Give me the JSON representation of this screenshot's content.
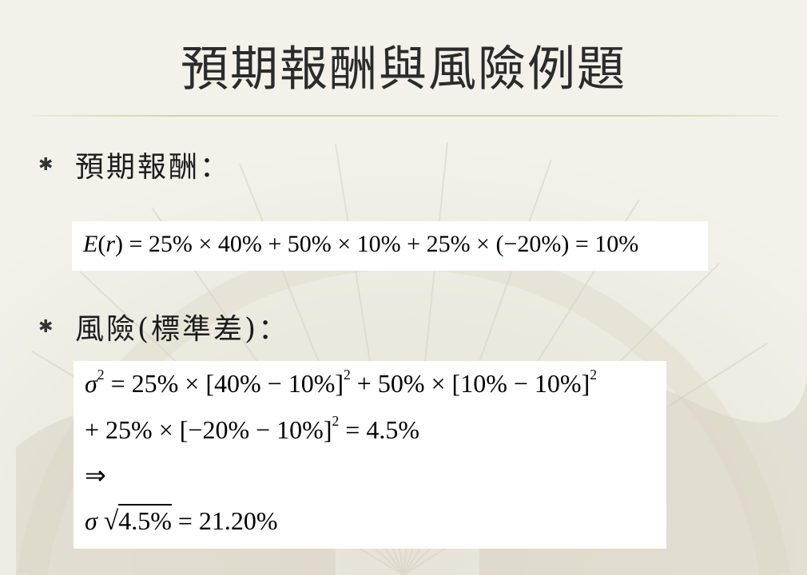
{
  "slide": {
    "title": "預期報酬與風險例題",
    "bullets": [
      {
        "marker": "✱",
        "label": "預期報酬："
      },
      {
        "marker": "✱",
        "label": "風險(標準差)："
      }
    ],
    "expected_return": {
      "lhs_var": "E",
      "lhs_arg": "(",
      "lhs_r": "r",
      "lhs_close": ")",
      "rhs": " = 25% × 40% + 50% × 10% + 25% × (−20%) = 10%"
    },
    "risk": {
      "sigma": "σ",
      "line1_rest": " = 25% × [40% − 10%]",
      "line1_mid": " + 50% × [10% − 10%]",
      "line2_a": "+ 25% × [−20% − 10%]",
      "line2_b": " = 4.5%",
      "arrow": "⇒",
      "sqrt_sign": "√",
      "sqrt_arg": "4.5%",
      "result": " = 21.20%",
      "exp": "2"
    }
  }
}
